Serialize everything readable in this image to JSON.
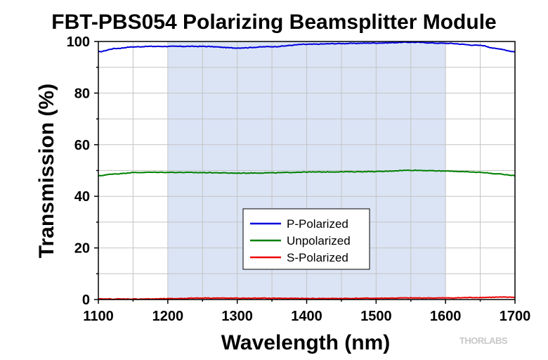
{
  "chart_data": {
    "type": "line",
    "title": "FBT-PBS054 Polarizing Beamsplitter Module",
    "xlabel": "Wavelength (nm)",
    "ylabel": "Transmission (%)",
    "xlim": [
      1100,
      1700
    ],
    "ylim": [
      0,
      100
    ],
    "x_ticks": [
      1100,
      1200,
      1300,
      1400,
      1500,
      1600,
      1700
    ],
    "y_ticks": [
      0,
      20,
      40,
      60,
      80,
      100
    ],
    "grid": true,
    "highlight_band": {
      "x_start": 1200,
      "x_end": 1600,
      "color": "#dbe4f5"
    },
    "legend_position": "center-bottom",
    "x": [
      1100,
      1125,
      1150,
      1175,
      1200,
      1250,
      1300,
      1350,
      1400,
      1450,
      1500,
      1550,
      1600,
      1650,
      1675,
      1700
    ],
    "series": [
      {
        "name": "P-Polarized",
        "color": "#0000dd",
        "values": [
          96,
          97.3,
          97.9,
          98.1,
          98.1,
          98.1,
          97.5,
          98.0,
          98.9,
          99.2,
          99.4,
          99.7,
          99.3,
          98.5,
          97.2,
          96
        ]
      },
      {
        "name": "Unpolarized",
        "color": "#008000",
        "values": [
          48,
          48.7,
          49.2,
          49.3,
          49.3,
          49.2,
          49.0,
          49.1,
          49.4,
          49.5,
          49.6,
          50.1,
          49.8,
          49.3,
          48.7,
          48
        ]
      },
      {
        "name": "S-Polarized",
        "color": "#ee0000",
        "values": [
          0.2,
          0.2,
          0.2,
          0.2,
          0.3,
          0.6,
          0.5,
          0.5,
          0.4,
          0.4,
          0.5,
          0.6,
          0.6,
          0.8,
          0.9,
          0.9
        ]
      }
    ]
  },
  "branding": {
    "watermark": "THORLABS"
  }
}
